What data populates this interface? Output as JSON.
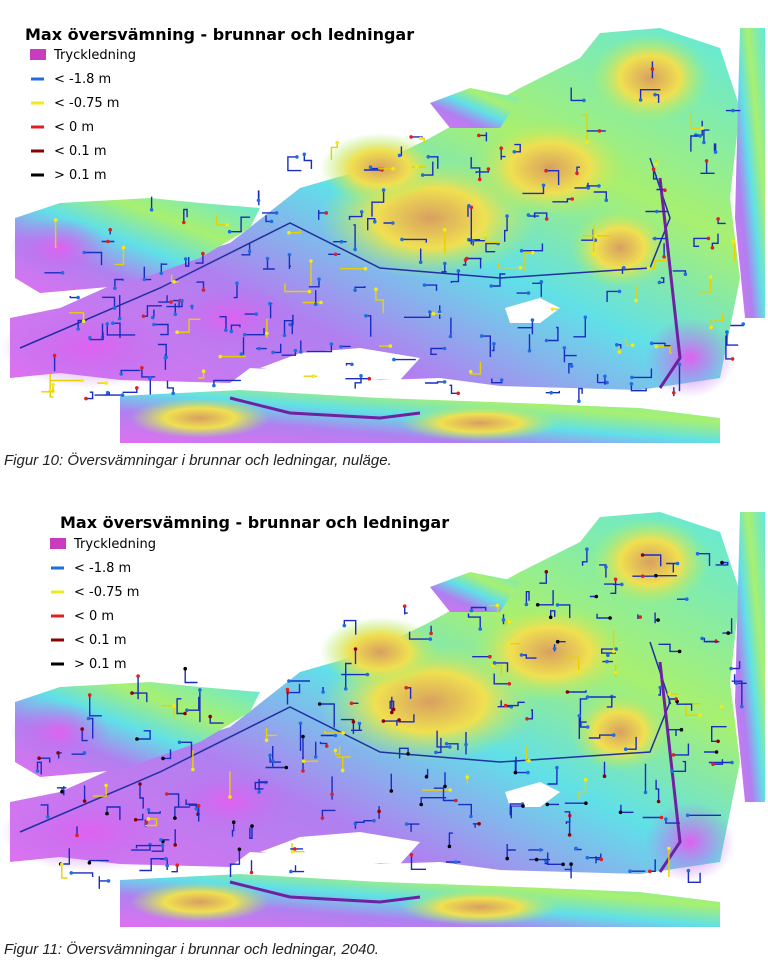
{
  "figures": [
    {
      "title": "Max översvämning - brunnar och ledningar",
      "legend": [
        {
          "label": "Tryckledning",
          "color": "#c83cc0"
        },
        {
          "label": "< -1.8 m",
          "color": "#1e6ee0"
        },
        {
          "label": "< -0.75 m",
          "color": "#f2ea1a"
        },
        {
          "label": "< 0 m",
          "color": "#e02020"
        },
        {
          "label": "< 0.1 m",
          "color": "#8c0000"
        },
        {
          "label": "> 0.1 m",
          "color": "#000000"
        }
      ],
      "caption": "Figur 10: Översvämningar i brunnar och ledningar, nuläge."
    },
    {
      "title": "Max översvämning - brunnar och ledningar",
      "legend": [
        {
          "label": "Tryckledning",
          "color": "#c83cc0"
        },
        {
          "label": "< -1.8 m",
          "color": "#1e6ee0"
        },
        {
          "label": "< -0.75 m",
          "color": "#f2ea1a"
        },
        {
          "label": "< 0 m",
          "color": "#e02020"
        },
        {
          "label": "< 0.1 m",
          "color": "#8c0000"
        },
        {
          "label": "> 0.1 m",
          "color": "#000000"
        }
      ],
      "caption": "Figur 11: Översvämningar i brunnar och ledningar, 2040."
    }
  ]
}
